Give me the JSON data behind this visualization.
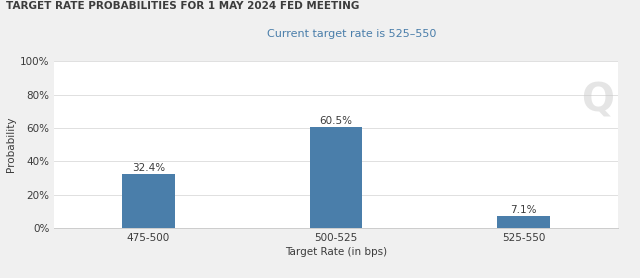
{
  "title": "TARGET RATE PROBABILITIES FOR 1 MAY 2024 FED MEETING",
  "subtitle": "Current target rate is 525–550",
  "categories": [
    "475-500",
    "500-525",
    "525-550"
  ],
  "values": [
    32.4,
    60.5,
    7.1
  ],
  "bar_color": "#4a7eaa",
  "xlabel": "Target Rate (in bps)",
  "ylabel": "Probability",
  "ylim": [
    0,
    100
  ],
  "yticks": [
    0,
    20,
    40,
    60,
    80,
    100
  ],
  "ytick_labels": [
    "0%",
    "20%",
    "40%",
    "60%",
    "80%",
    "100%"
  ],
  "background_color": "#f0f0f0",
  "plot_bg_color": "#ffffff",
  "title_fontsize": 7.5,
  "subtitle_fontsize": 8,
  "label_fontsize": 7.5,
  "tick_fontsize": 7.5,
  "bar_label_fontsize": 7.5,
  "title_color": "#3c3c3c",
  "subtitle_color": "#4a7eaa",
  "grid_color": "#e0e0e0",
  "watermark_color": "#cccccc",
  "watermark_text": "Q"
}
